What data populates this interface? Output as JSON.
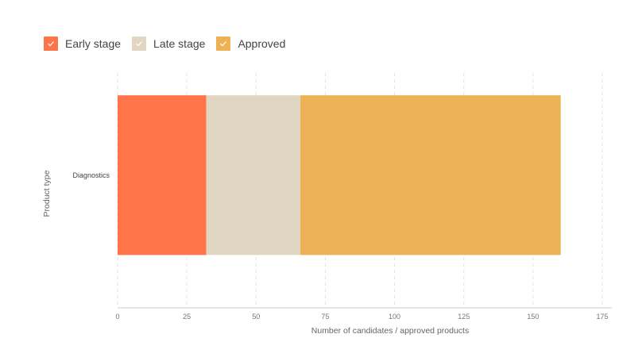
{
  "chart_data": {
    "type": "bar",
    "orientation": "horizontal",
    "stacked": true,
    "categories": [
      "Diagnostics"
    ],
    "series": [
      {
        "name": "Early stage",
        "values": [
          32
        ],
        "color": "#FF7549"
      },
      {
        "name": "Late stage",
        "values": [
          34
        ],
        "color": "#E1D6C1"
      },
      {
        "name": "Approved",
        "values": [
          94
        ],
        "color": "#EDB256"
      }
    ],
    "xlabel": "Number of candidates / approved products",
    "ylabel": "Product type",
    "xlim": [
      0,
      175
    ],
    "xticks": [
      "0",
      "25",
      "50",
      "75",
      "100",
      "125",
      "150",
      "175"
    ],
    "grid": "vertical dashed",
    "legend_position": "top-left"
  }
}
